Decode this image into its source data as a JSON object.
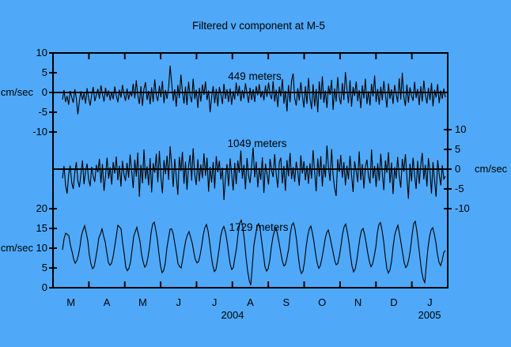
{
  "title": "Filtered v component at M-5",
  "colors": {
    "background": "#4FA9F8",
    "line": "#000000",
    "text": "#000000"
  },
  "x_axis": {
    "months": [
      "M",
      "A",
      "M",
      "J",
      "J",
      "A",
      "S",
      "O",
      "N",
      "D",
      "J"
    ],
    "years": [
      "2004",
      "2005"
    ],
    "range_note": "Mar 2004 - Jan 2005"
  },
  "chart_data": [
    {
      "type": "line",
      "label": "449 meters",
      "ylabel": "cm/sec",
      "yaxis_side": "left",
      "yticks": [
        10,
        5,
        0,
        -5,
        -10
      ],
      "ylim": [
        -10,
        10
      ],
      "zero_line": true,
      "values": [
        -1.8,
        0.6,
        -2.4,
        -0.9,
        -3.1,
        0.4,
        -1.2,
        -2.6,
        0.8,
        -1.5,
        -5.5,
        -2.1,
        0.3,
        -1.9,
        -0.2,
        -2.8,
        1.1,
        -1.4,
        -3.3,
        -0.6,
        1.4,
        -2.2,
        -0.7,
        0.9,
        -1.6,
        1.8,
        -0.4,
        -2.3,
        1.2,
        -1.1,
        0.5,
        -2.0,
        0.2,
        -1.7,
        1.5,
        -0.8,
        -2.5,
        0.7,
        -1.3,
        1.9,
        -0.5,
        -2.1,
        1.0,
        -1.8,
        0.3,
        -1.0,
        2.2,
        -1.5,
        3.1,
        -0.7,
        -2.9,
        1.6,
        -3.4,
        0.9,
        2.6,
        -1.9,
        0.4,
        -3.0,
        1.3,
        -2.4,
        3.3,
        -0.8,
        -2.2,
        1.7,
        -1.2,
        2.9,
        -2.7,
        0.6,
        -1.6,
        1.1,
        6.8,
        2.4,
        -2.1,
        0.8,
        -3.6,
        1.9,
        -1.4,
        4.5,
        0.2,
        -2.8,
        1.5,
        -3.2,
        2.7,
        -0.9,
        -2.5,
        3.5,
        -1.7,
        0.7,
        -3.9,
        1.2,
        -2.3,
        2.0,
        -0.6,
        2.8,
        -1.9,
        0.5,
        -5.0,
        -1.3,
        1.6,
        -2.7,
        0.9,
        -3.5,
        1.4,
        -0.4,
        -2.9,
        2.2,
        -1.6,
        0.8,
        -2.4,
        1.0,
        -3.1,
        0.3,
        -1.8,
        2.5,
        -0.9,
        1.7,
        -2.2,
        0.6,
        -1.5,
        2.3,
        -0.3,
        -2.6,
        1.2,
        -1.9,
        0.8,
        -2.4,
        1.6,
        -0.7,
        2.1,
        -1.3,
        0.4,
        -2.0,
        1.8,
        -1.1,
        2.5,
        -0.5,
        -1.7,
        2.9,
        -2.3,
        0.7,
        -3.7,
        1.5,
        -1.0,
        3.4,
        -2.8,
        0.4,
        -4.8,
        1.9,
        -2.5,
        3.0,
        4.8,
        -1.4,
        -3.3,
        1.1,
        -2.0,
        2.6,
        -0.8,
        -3.8,
        1.6,
        -2.9,
        3.7,
        -1.5,
        -4.2,
        2.1,
        -3.5,
        0.9,
        -5.0,
        2.8,
        -1.8,
        4.1,
        -2.6,
        0.5,
        -3.9,
        1.7,
        -0.6,
        3.2,
        -4.4,
        1.0,
        -2.3,
        3.9,
        -1.2,
        -3.0,
        2.4,
        -1.9,
        5.2,
        0.8,
        -2.7,
        3.1,
        -3.6,
        1.4,
        -0.9,
        2.8,
        -2.2,
        0.6,
        -4.0,
        1.8,
        -1.5,
        3.5,
        -2.9,
        0.3,
        -3.3,
        2.2,
        -1.0,
        4.3,
        -2.4,
        0.9,
        -3.1,
        1.5,
        -2.0,
        2.9,
        -0.7,
        -3.8,
        2.3,
        -1.6,
        0.8,
        -2.9,
        1.9,
        -0.4,
        -2.5,
        3.6,
        -1.8,
        5.0,
        -1.1,
        -3.4,
        2.0,
        -2.6,
        1.3,
        -0.8,
        -2.1,
        2.7,
        -1.4,
        0.9,
        -3.2,
        1.6,
        -2.3,
        3.0,
        -0.6,
        -2.8,
        1.2,
        -1.9,
        2.4,
        -3.5,
        0.7,
        -1.3,
        2.1,
        -2.7,
        0.5,
        -1.6,
        1.0,
        -1.2
      ]
    },
    {
      "type": "line",
      "label": "1049 meters",
      "ylabel": "cm/sec",
      "yaxis_side": "right",
      "yticks": [
        10,
        5,
        0,
        -5,
        -10
      ],
      "ylim": [
        -10,
        10
      ],
      "zero_line": true,
      "values": [
        -2.3,
        0.8,
        -4.1,
        -6.2,
        -1.5,
        0.9,
        -3.4,
        -5.0,
        -0.7,
        1.8,
        -2.9,
        -4.6,
        -1.2,
        2.2,
        -3.8,
        -0.5,
        1.4,
        -2.6,
        -4.3,
        0.6,
        -1.9,
        -3.2,
        1.1,
        -0.8,
        2.6,
        -3.5,
        1.3,
        -5.5,
        -1.7,
        2.9,
        -2.4,
        0.5,
        -3.9,
        1.8,
        -1.1,
        3.2,
        -2.8,
        0.9,
        -4.4,
        2.1,
        -1.4,
        -3.0,
        1.6,
        -2.2,
        3.7,
        -0.6,
        -4.8,
        2.4,
        -1.9,
        4.2,
        -7.0,
        1.1,
        -3.6,
        5.0,
        -2.5,
        0.7,
        -4.1,
        2.8,
        -5.9,
        1.5,
        -0.9,
        3.9,
        -3.3,
        4.6,
        -2.0,
        -6.1,
        2.3,
        -1.3,
        3.4,
        -2.7,
        5.8,
        1.0,
        -4.5,
        2.6,
        -1.8,
        -6.5,
        3.1,
        -0.5,
        4.4,
        -3.7,
        1.9,
        -5.2,
        0.8,
        3.6,
        -2.9,
        5.3,
        -1.5,
        -4.0,
        2.5,
        -3.1,
        1.2,
        -2.3,
        4.0,
        -1.7,
        2.9,
        -5.7,
        0.6,
        -3.4,
        1.8,
        -4.9,
        3.3,
        -0.8,
        2.1,
        -2.6,
        0.4,
        -7.8,
        -2.2,
        1.3,
        -4.3,
        2.7,
        -1.0,
        -5.4,
        1.6,
        -3.8,
        2.2,
        -0.9,
        4.7,
        -2.4,
        1.1,
        -5.1,
        2.8,
        -1.6,
        -3.5,
        0.7,
        5.5,
        -2.1,
        1.9,
        -4.6,
        0.3,
        -2.7,
        3.0,
        -6.0,
        1.4,
        -1.2,
        -3.9,
        2.6,
        -0.4,
        -2.0,
        3.8,
        -1.3,
        -4.7,
        1.7,
        2.9,
        -3.6,
        0.8,
        -5.5,
        2.3,
        -1.8,
        4.1,
        -2.5,
        0.5,
        -3.2,
        1.9,
        -0.6,
        -4.2,
        3.5,
        -1.1,
        2.0,
        -2.8,
        0.9,
        -3.7,
        1.5,
        -2.4,
        4.8,
        -0.8,
        -5.6,
        2.7,
        -1.9,
        3.3,
        -4.4,
        1.2,
        -2.1,
        6.0,
        0.4,
        -3.0,
        5.1,
        -1.6,
        -4.8,
        -6.8,
        2.5,
        -0.7,
        3.6,
        -2.2,
        1.8,
        -4.1,
        0.9,
        -2.6,
        3.4,
        -1.4,
        -5.8,
        2.0,
        -0.5,
        -3.3,
        4.5,
        -2.8,
        1.3,
        -4.9,
        0.6,
        2.4,
        -1.7,
        -3.6,
        5.0,
        -2.3,
        0.8,
        -4.5,
        1.5,
        -2.9,
        3.9,
        -1.2,
        -5.3,
        2.2,
        -0.9,
        4.3,
        -3.5,
        1.7,
        -6.3,
        0.5,
        -2.4,
        3.1,
        -1.8,
        -4.7,
        2.6,
        -0.6,
        3.8,
        -2.0,
        -7.5,
        1.4,
        -3.1,
        2.9,
        -1.5,
        -5.0,
        2.1,
        -3.7,
        0.9,
        4.1,
        -2.6,
        1.1,
        -4.4,
        2.8,
        -0.8,
        -6.2,
        1.8,
        -3.0,
        -7.0,
        2.3,
        -1.3,
        -4.1,
        1.0,
        -2.5,
        -1.8
      ]
    },
    {
      "type": "line",
      "label": "1729 meters",
      "ylabel": "cm/sec",
      "yaxis_side": "left",
      "yticks": [
        20,
        15,
        10,
        5,
        0
      ],
      "ylim": [
        0,
        20
      ],
      "zero_line": false,
      "values": [
        9.6,
        12.4,
        13.8,
        13.5,
        13.2,
        10.8,
        9.2,
        7.3,
        6.2,
        6.8,
        8.1,
        10.3,
        13.2,
        14.6,
        15.7,
        13.9,
        11.9,
        8.2,
        6.0,
        4.8,
        5.3,
        7.4,
        9.8,
        12.7,
        13.6,
        14.9,
        13.1,
        11.6,
        8.9,
        6.4,
        5.7,
        6.2,
        7.9,
        10.4,
        13.0,
        15.8,
        15.4,
        14.9,
        11.4,
        8.6,
        5.2,
        4.3,
        4.9,
        6.5,
        9.7,
        12.9,
        14.2,
        15.3,
        13.5,
        11.7,
        8.4,
        6.5,
        5.2,
        5.8,
        7.6,
        10.2,
        13.9,
        16.1,
        16.6,
        14.6,
        12.1,
        8.5,
        5.4,
        3.8,
        4.4,
        6.3,
        10.1,
        12.5,
        14.8,
        14.9,
        13.6,
        11.2,
        8.8,
        6.1,
        5.4,
        5.0,
        7.2,
        9.9,
        12.1,
        13.4,
        14.2,
        12.8,
        11.3,
        9.0,
        7.1,
        6.3,
        6.6,
        8.3,
        10.6,
        13.4,
        15.2,
        16.0,
        14.4,
        11.6,
        8.2,
        5.6,
        4.1,
        4.6,
        7.0,
        9.8,
        13.0,
        14.7,
        15.5,
        14.1,
        11.8,
        8.7,
        5.9,
        4.6,
        5.1,
        7.7,
        10.0,
        13.6,
        16.3,
        17.1,
        15.2,
        12.0,
        7.8,
        4.3,
        1.9,
        0.6,
        5.5,
        10.8,
        13.2,
        15.6,
        16.2,
        14.7,
        11.5,
        8.4,
        5.3,
        4.2,
        4.8,
        6.9,
        10.2,
        12.8,
        14.4,
        15.1,
        13.3,
        11.1,
        8.9,
        6.7,
        5.5,
        5.9,
        7.8,
        9.9,
        13.7,
        15.9,
        16.4,
        14.8,
        11.9,
        8.1,
        5.0,
        3.6,
        4.2,
        6.6,
        10.3,
        13.1,
        14.9,
        15.6,
        13.8,
        11.4,
        8.6,
        6.2,
        4.9,
        5.6,
        7.5,
        9.7,
        12.3,
        13.9,
        14.6,
        13.0,
        11.0,
        9.1,
        7.0,
        5.8,
        6.1,
        8.0,
        10.5,
        13.5,
        15.4,
        16.1,
        14.2,
        11.7,
        8.3,
        5.5,
        4.0,
        4.7,
        6.8,
        9.8,
        12.6,
        14.5,
        15.0,
        13.4,
        11.2,
        8.7,
        6.6,
        5.3,
        6.0,
        7.9,
        10.1,
        13.8,
        16.0,
        16.5,
        14.5,
        11.8,
        8.0,
        4.9,
        3.7,
        4.5,
        6.7,
        10.4,
        13.3,
        14.8,
        15.8,
        13.7,
        11.3,
        8.8,
        6.3,
        5.1,
        5.7,
        7.4,
        9.9,
        13.4,
        16.2,
        16.8,
        14.3,
        11.0,
        7.5,
        4.1,
        2.2,
        1.3,
        5.8,
        10.0,
        12.9,
        14.6,
        15.2,
        13.6,
        11.5,
        8.5,
        6.4,
        5.6,
        6.9,
        8.9,
        9.4
      ]
    }
  ]
}
